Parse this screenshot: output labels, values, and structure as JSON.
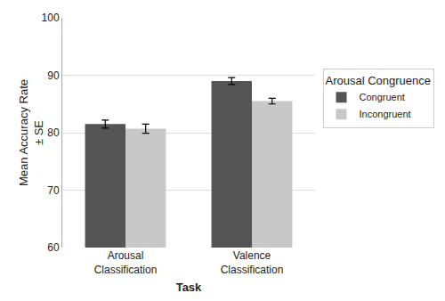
{
  "chart_data": {
    "type": "bar",
    "xlabel": "Task",
    "ylabel": "Mean Accuracy Rate\n± SE",
    "categories": [
      "Arousal\nClassification",
      "Valence\nClassification"
    ],
    "series": [
      {
        "name": "Congruent",
        "color": "#555555",
        "values": [
          81.5,
          89.0
        ],
        "errors": [
          0.7,
          0.6
        ]
      },
      {
        "name": "Incongruent",
        "color": "#c8c8c8",
        "values": [
          80.7,
          85.5
        ],
        "errors": [
          0.8,
          0.5
        ]
      }
    ],
    "legend_title": "Arousal Congruence",
    "legend": "right",
    "ylim": [
      60,
      100
    ],
    "yticks": [
      60,
      70,
      80,
      90,
      100
    ],
    "grid": true
  }
}
